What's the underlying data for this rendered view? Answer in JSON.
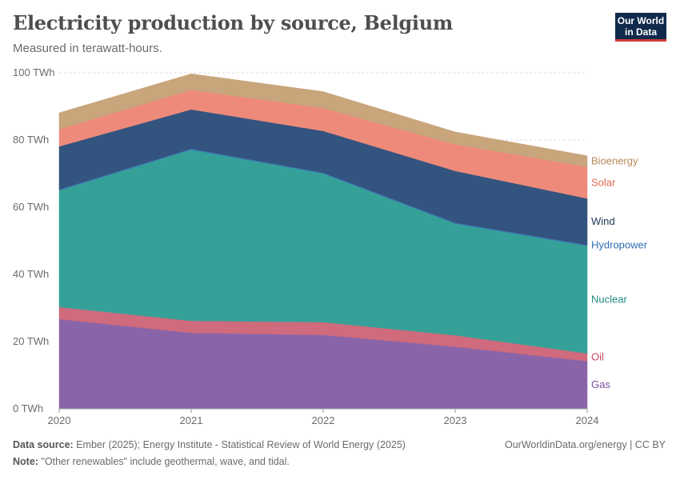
{
  "header": {
    "title": "Electricity production by source, Belgium",
    "subtitle": "Measured in terawatt-hours.",
    "logo_line1": "Our World",
    "logo_line2": "in Data"
  },
  "footer": {
    "source_label": "Data source:",
    "source_text": "Ember (2025); Energy Institute - Statistical Review of World Energy (2025)",
    "note_label": "Note:",
    "note_text": "\"Other renewables\" include geothermal, wave, and tidal.",
    "credit": "OurWorldinData.org/energy | CC BY"
  },
  "chart_data": {
    "type": "area",
    "stacked": true,
    "x": [
      "2020",
      "2021",
      "2022",
      "2023",
      "2024"
    ],
    "ylim": [
      0,
      100
    ],
    "yticks": [
      0,
      20,
      40,
      60,
      80,
      100
    ],
    "ytick_labels": [
      "0 TWh",
      "20 TWh",
      "40 TWh",
      "60 TWh",
      "80 TWh",
      "100 TWh"
    ],
    "grid": true,
    "legend_placement": "right",
    "series": [
      {
        "name": "Gas",
        "values": [
          26.7,
          22.6,
          22.0,
          18.5,
          14.2
        ],
        "color": "#8a64a9",
        "label_color": "#7a4f9f"
      },
      {
        "name": "Oil",
        "values": [
          3.6,
          3.6,
          3.8,
          3.4,
          2.3
        ],
        "color": "#cf6b7d",
        "label_color": "#c6475b"
      },
      {
        "name": "Nuclear",
        "values": [
          34.7,
          50.9,
          44.2,
          33.2,
          32.0
        ],
        "color": "#35a098",
        "label_color": "#1e8a80"
      },
      {
        "name": "Hydropower",
        "values": [
          0.3,
          0.3,
          0.3,
          0.3,
          0.3
        ],
        "color": "#3e79b6",
        "label_color": "#2f6cb6"
      },
      {
        "name": "Wind",
        "values": [
          12.8,
          11.7,
          12.4,
          15.4,
          13.8
        ],
        "color": "#33547e",
        "label_color": "#1d3557"
      },
      {
        "name": "Solar",
        "values": [
          5.1,
          5.8,
          6.8,
          7.9,
          9.4
        ],
        "color": "#ee8a7a",
        "label_color": "#e0684f"
      },
      {
        "name": "Bioenergy",
        "values": [
          4.9,
          4.8,
          4.9,
          3.7,
          3.3
        ],
        "color": "#c9a57c",
        "label_color": "#b78a5a"
      }
    ]
  }
}
